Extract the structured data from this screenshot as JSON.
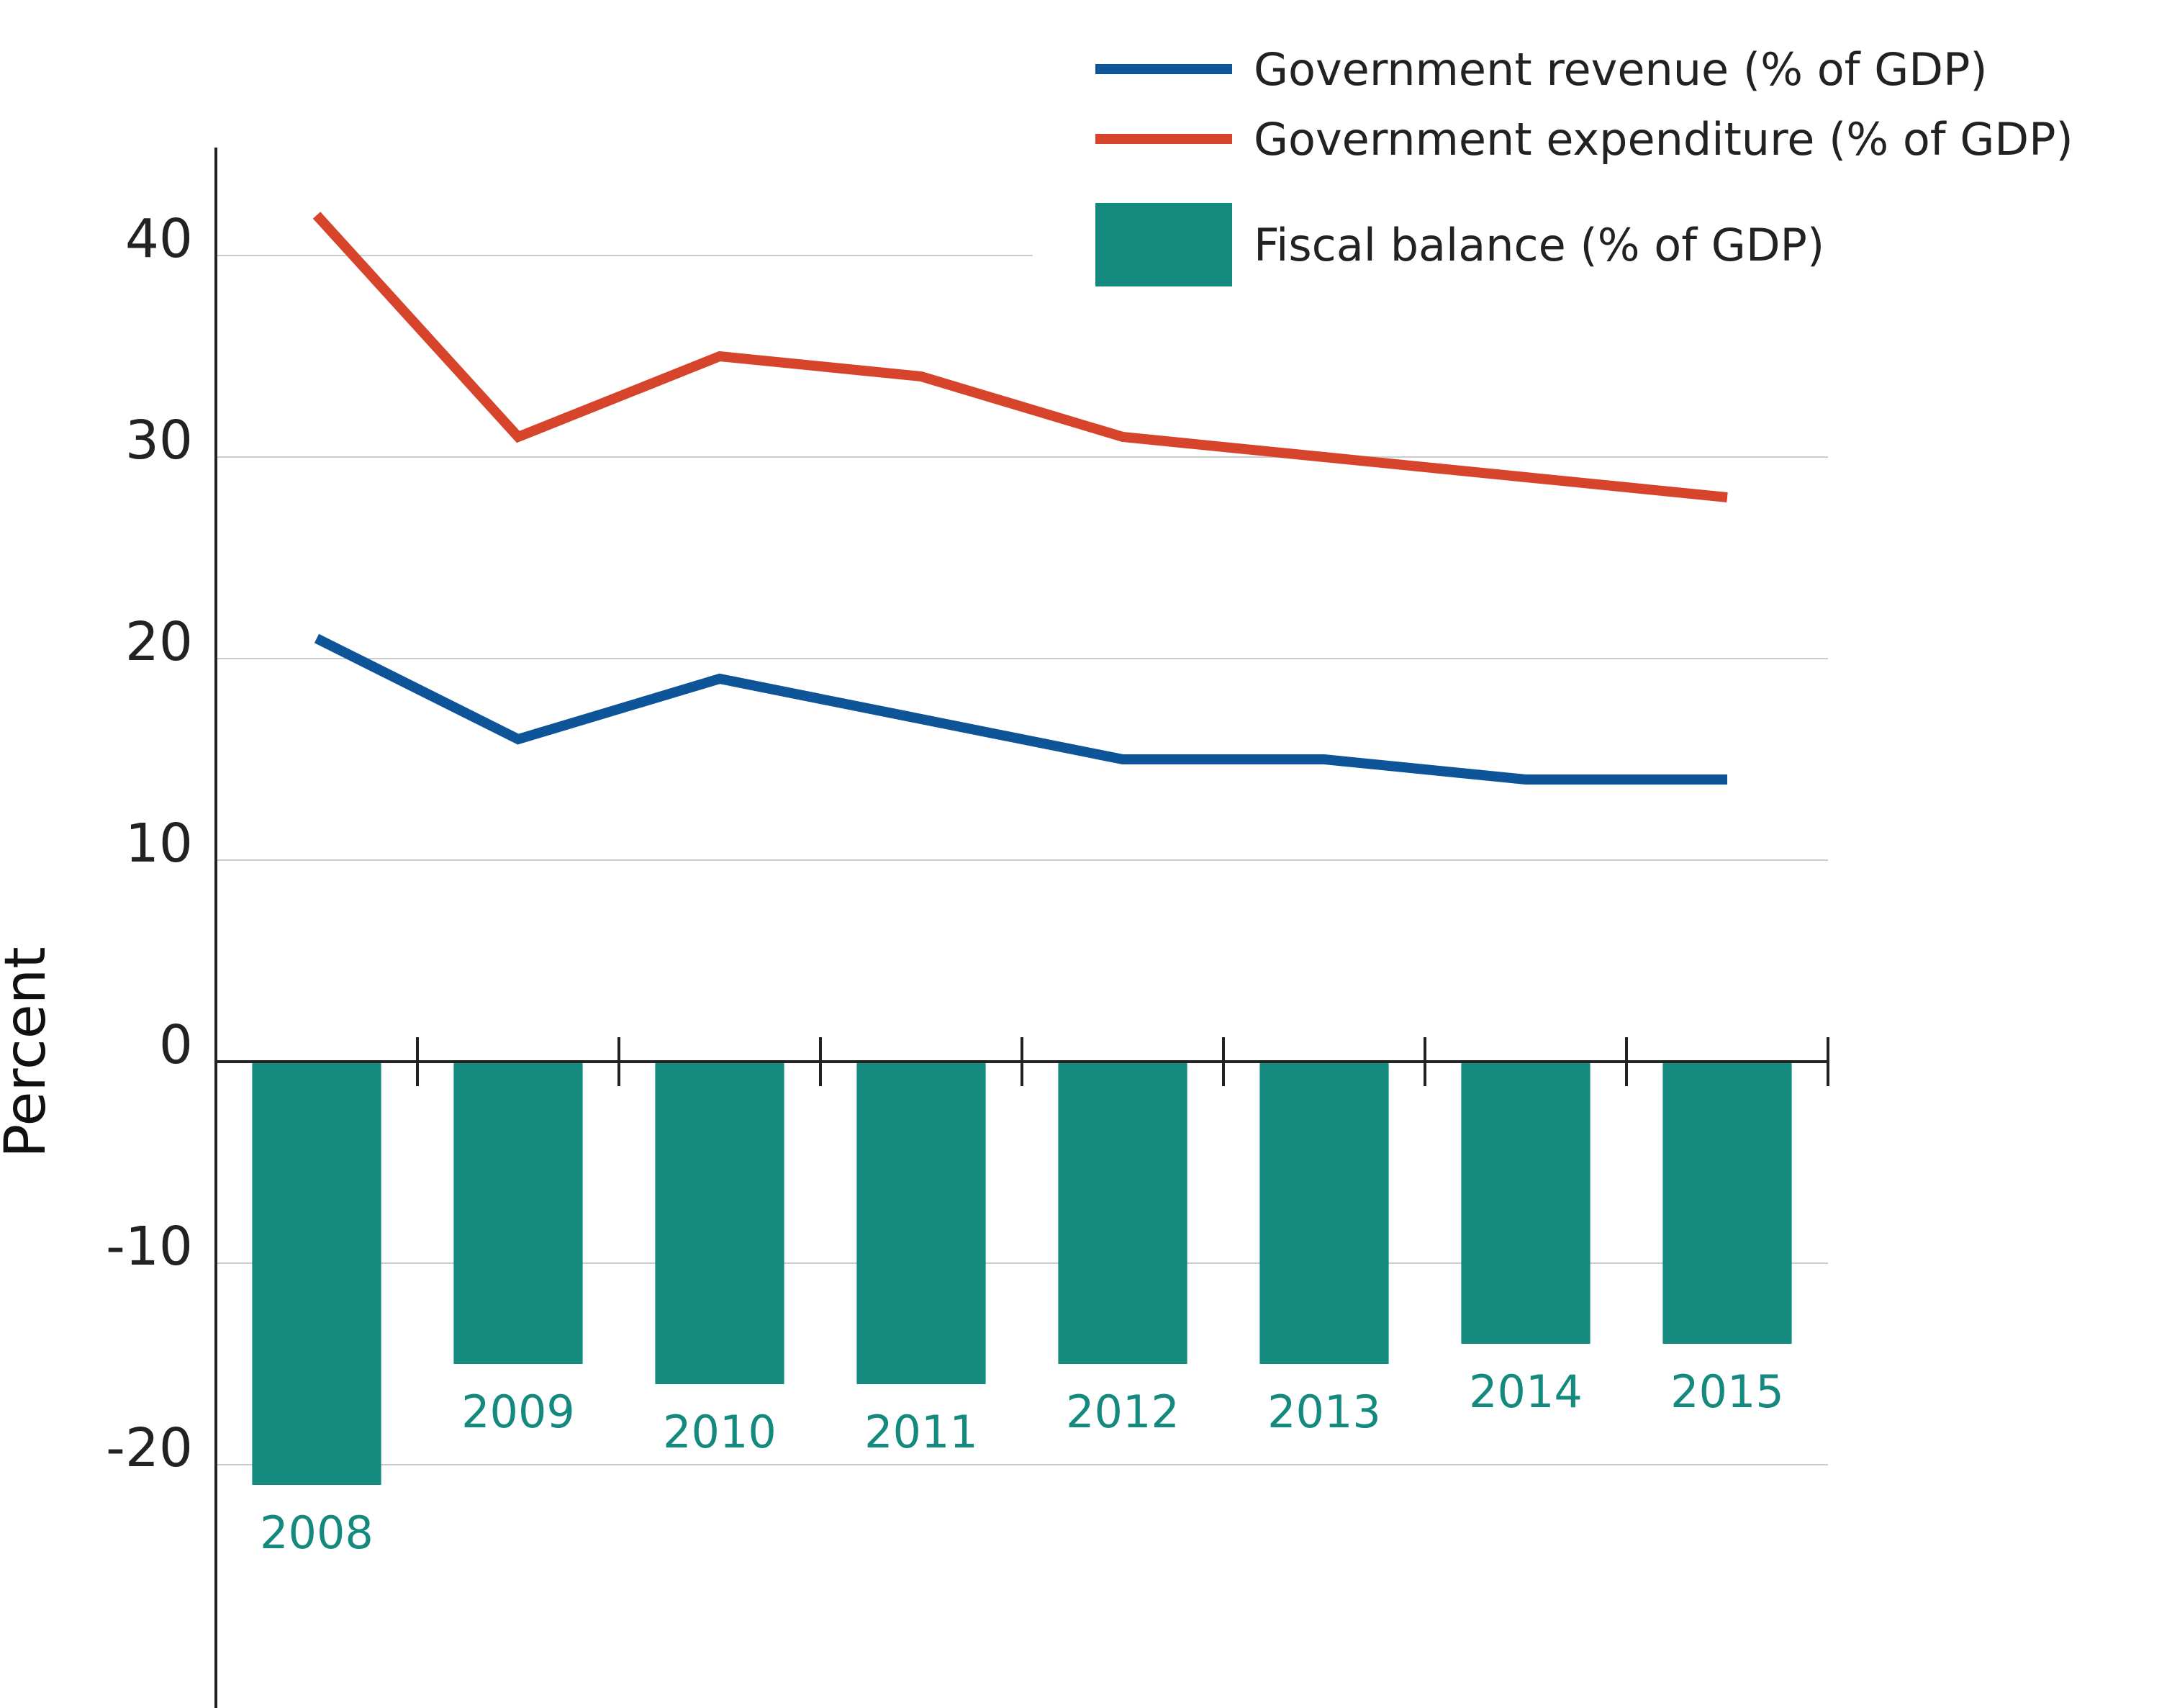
{
  "chart_data": {
    "type": "bar",
    "title": "",
    "xlabel": "",
    "ylabel": "Percent",
    "ylim": [
      -26,
      46
    ],
    "yticks": [
      {
        "value": 40,
        "label": "40"
      },
      {
        "value": 30,
        "label": "30"
      },
      {
        "value": 20,
        "label": "20"
      },
      {
        "value": 10,
        "label": "10"
      },
      {
        "value": 0,
        "label": "0"
      },
      {
        "value": -10,
        "label": "-10"
      },
      {
        "value": -20,
        "label": "-20"
      }
    ],
    "categories": [
      "2008",
      "2009",
      "2010",
      "2011",
      "2012",
      "2013",
      "2014",
      "2015"
    ],
    "series": [
      {
        "name": "Government revenue (% of GDP)",
        "type": "line",
        "color": "#0e5498",
        "values": [
          21,
          16,
          19,
          17,
          15,
          15,
          14,
          14
        ]
      },
      {
        "name": "Government expenditure (% of GDP)",
        "type": "line",
        "color": "#d6452b",
        "values": [
          42,
          31,
          35,
          34,
          31,
          30,
          29,
          28
        ]
      },
      {
        "name": "Fiscal balance (% of GDP)",
        "type": "bar",
        "color": "#14897e",
        "values": [
          -21,
          -15,
          -16,
          -16,
          -15,
          -15,
          -14,
          -14
        ]
      }
    ],
    "grid": true,
    "legend_position": "top-right"
  }
}
